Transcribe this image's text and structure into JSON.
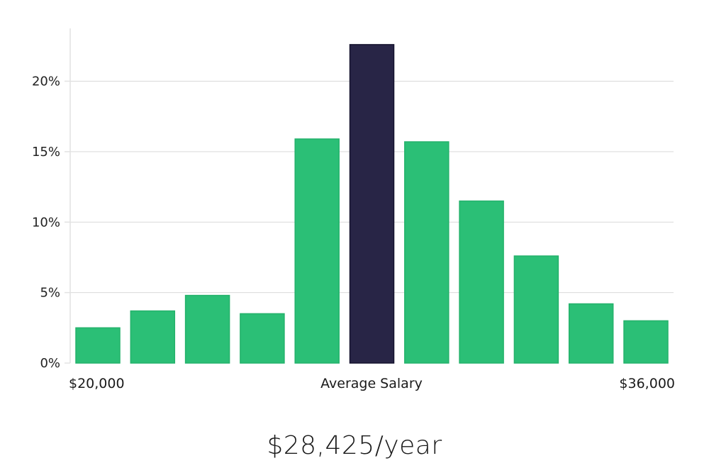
{
  "chart_data": {
    "type": "bar",
    "title": "",
    "xlabel": "Average Salary",
    "ylabel": "",
    "ylim": [
      0,
      23.75
    ],
    "yticks": [
      0,
      5,
      10,
      15,
      20
    ],
    "ytick_labels": [
      "0%",
      "5%",
      "10%",
      "15%",
      "20%"
    ],
    "x_edge_labels": {
      "left": "$20,000",
      "right": "$36,000"
    },
    "values": [
      2.5,
      3.7,
      4.8,
      3.5,
      15.9,
      22.6,
      15.7,
      11.5,
      7.6,
      4.2,
      3.0
    ],
    "highlight_index": 5,
    "colors": {
      "bar": "#2bbf76",
      "bar_stroke": "#24b26b",
      "highlight": "#282546",
      "highlight_stroke": "#15132e"
    },
    "grid": true
  },
  "salary_label": "$28,425/year"
}
